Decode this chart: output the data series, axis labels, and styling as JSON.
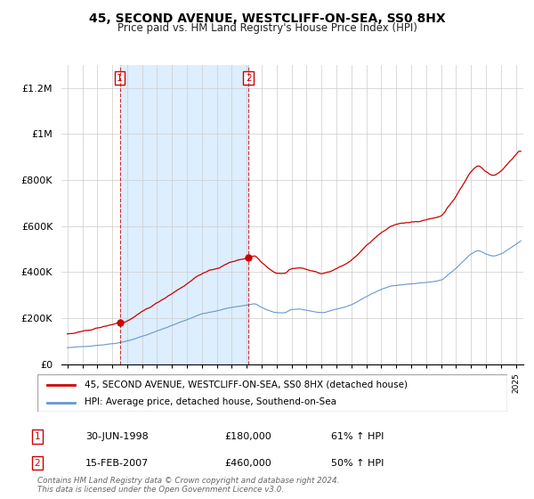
{
  "title": "45, SECOND AVENUE, WESTCLIFF-ON-SEA, SS0 8HX",
  "subtitle": "Price paid vs. HM Land Registry's House Price Index (HPI)",
  "property_label": "45, SECOND AVENUE, WESTCLIFF-ON-SEA, SS0 8HX (detached house)",
  "hpi_label": "HPI: Average price, detached house, Southend-on-Sea",
  "sale1_date": "30-JUN-1998",
  "sale1_price": 180000,
  "sale1_pct": "61% ↑ HPI",
  "sale2_date": "15-FEB-2007",
  "sale2_price": 460000,
  "sale2_pct": "50% ↑ HPI",
  "footer": "Contains HM Land Registry data © Crown copyright and database right 2024.\nThis data is licensed under the Open Government Licence v3.0.",
  "property_color": "#cc0000",
  "hpi_color": "#6699cc",
  "shade_color": "#ddeeff",
  "background_color": "#ffffff",
  "grid_color": "#cccccc",
  "ylim": [
    0,
    1300000
  ],
  "yticks": [
    0,
    200000,
    400000,
    600000,
    800000,
    1000000,
    1200000
  ],
  "ytick_labels": [
    "£0",
    "£200K",
    "£400K",
    "£600K",
    "£800K",
    "£1M",
    "£1.2M"
  ],
  "sale1_x": 1998.5,
  "sale2_x": 2007.12,
  "xmin": 1995.0,
  "xmax": 2025.3
}
